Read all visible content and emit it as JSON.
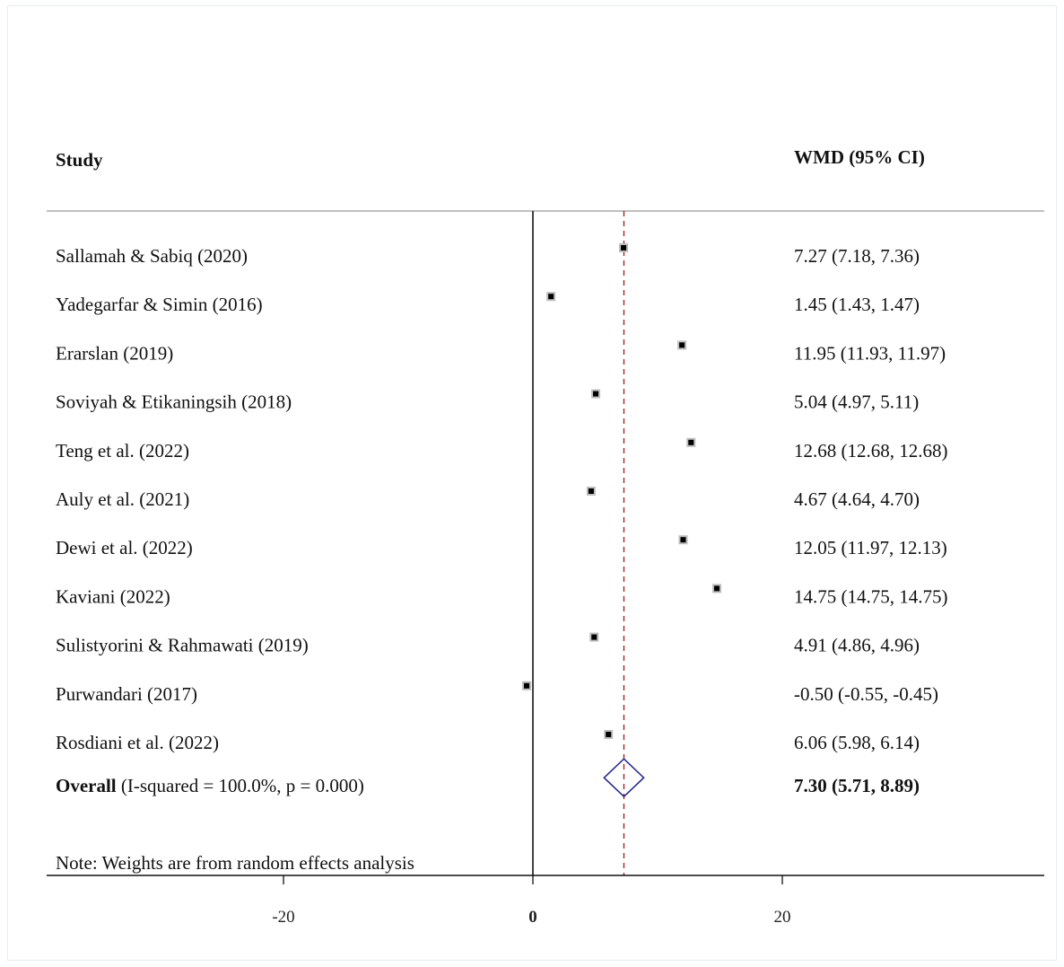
{
  "chart_data": {
    "type": "forest",
    "headers": {
      "study": "Study",
      "effect": "WMD (95% CI)"
    },
    "studies": [
      {
        "name": "Sallamah & Sabiq (2020)",
        "wmd": 7.27,
        "lo": 7.18,
        "hi": 7.36,
        "ci_text": "7.27 (7.18, 7.36)"
      },
      {
        "name": "Yadegarfar & Simin (2016)",
        "wmd": 1.45,
        "lo": 1.43,
        "hi": 1.47,
        "ci_text": "1.45 (1.43, 1.47)"
      },
      {
        "name": "Erarslan (2019)",
        "wmd": 11.95,
        "lo": 11.93,
        "hi": 11.97,
        "ci_text": "11.95 (11.93, 11.97)"
      },
      {
        "name": "Soviyah & Etikaningsih (2018)",
        "wmd": 5.04,
        "lo": 4.97,
        "hi": 5.11,
        "ci_text": "5.04 (4.97, 5.11)"
      },
      {
        "name": "Teng et al. (2022)",
        "wmd": 12.68,
        "lo": 12.68,
        "hi": 12.68,
        "ci_text": "12.68 (12.68, 12.68)"
      },
      {
        "name": "Auly et al. (2021)",
        "wmd": 4.67,
        "lo": 4.64,
        "hi": 4.7,
        "ci_text": "4.67 (4.64, 4.70)"
      },
      {
        "name": "Dewi et al. (2022)",
        "wmd": 12.05,
        "lo": 11.97,
        "hi": 12.13,
        "ci_text": "12.05 (11.97, 12.13)"
      },
      {
        "name": "Kaviani (2022)",
        "wmd": 14.75,
        "lo": 14.75,
        "hi": 14.75,
        "ci_text": "14.75 (14.75, 14.75)"
      },
      {
        "name": "Sulistyorini & Rahmawati (2019)",
        "wmd": 4.91,
        "lo": 4.86,
        "hi": 4.96,
        "ci_text": "4.91 (4.86, 4.96)"
      },
      {
        "name": "Purwandari (2017)",
        "wmd": -0.5,
        "lo": -0.55,
        "hi": -0.45,
        "ci_text": "-0.50 (-0.55, -0.45)"
      },
      {
        "name": "Rosdiani et al. (2022)",
        "wmd": 6.06,
        "lo": 5.98,
        "hi": 6.14,
        "ci_text": "6.06 (5.98, 6.14)"
      }
    ],
    "overall": {
      "label": "Overall",
      "stats": "(I-squared = 100.0%, p = 0.000)",
      "wmd": 7.3,
      "lo": 5.71,
      "hi": 8.89,
      "ci_text": "7.30 (5.71, 8.89)"
    },
    "note": "Note: Weights are from random effects analysis",
    "x_ticks": [
      {
        "value": -20,
        "label": "-20"
      },
      {
        "value": 0,
        "label": "0"
      },
      {
        "value": 20,
        "label": "20"
      }
    ],
    "xlim": [
      -39,
      41
    ],
    "null_line": 0,
    "colors": {
      "overall_diamond": "#2a2a8c",
      "overall_line": "#a01818",
      "marker": "#000000"
    }
  }
}
